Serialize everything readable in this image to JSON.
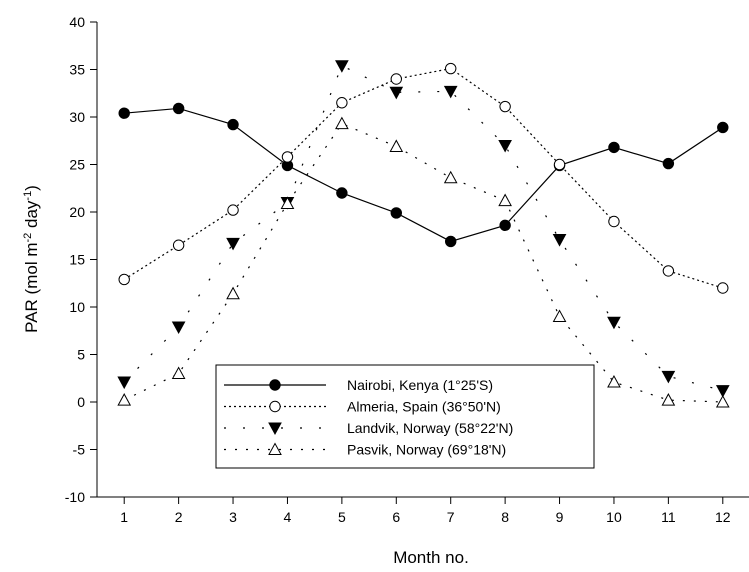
{
  "chart_data": {
    "type": "line",
    "title": "",
    "xlabel": "Month no.",
    "ylabel_prefix": "PAR (mol m",
    "ylabel_sup1": "-2",
    "ylabel_mid": " day",
    "ylabel_sup2": "-1",
    "ylabel_suffix": ")",
    "xlim": [
      0.5,
      12.5
    ],
    "ylim": [
      -10,
      40
    ],
    "x_ticks": [
      1,
      2,
      3,
      4,
      5,
      6,
      7,
      8,
      9,
      10,
      11,
      12
    ],
    "y_ticks": [
      -10,
      -5,
      0,
      5,
      10,
      15,
      20,
      25,
      30,
      35,
      40
    ],
    "grid": false,
    "legend_position": "lower-center",
    "x": [
      1,
      2,
      3,
      4,
      5,
      6,
      7,
      8,
      9,
      10,
      11,
      12
    ],
    "series": [
      {
        "name": "Nairobi, Kenya (1°25'S)",
        "marker": "filled-circle",
        "line": "solid",
        "values": [
          30.4,
          30.9,
          29.2,
          24.9,
          22.0,
          19.9,
          16.9,
          18.6,
          24.9,
          26.8,
          25.1,
          28.9
        ]
      },
      {
        "name": "Almeria, Spain (36°50'N)",
        "marker": "open-circle",
        "line": "dotted",
        "values": [
          12.9,
          16.5,
          20.2,
          25.8,
          31.5,
          34.0,
          35.1,
          31.1,
          25.0,
          19.0,
          13.8,
          12.0
        ]
      },
      {
        "name": "Landvik, Norway (58°22'N)",
        "marker": "filled-triangle-down",
        "line": "dash-dot-sparse",
        "values": [
          2.1,
          7.9,
          16.7,
          21.0,
          35.4,
          32.6,
          32.7,
          27.0,
          17.1,
          8.4,
          2.7,
          1.2
        ]
      },
      {
        "name": "Pasvik, Norway (69°18'N)",
        "marker": "open-triangle-up",
        "line": "dotted-sparse",
        "values": [
          0.2,
          3.0,
          11.4,
          20.9,
          29.3,
          26.9,
          23.6,
          21.2,
          9.0,
          2.1,
          0.2,
          0.0
        ]
      }
    ]
  }
}
